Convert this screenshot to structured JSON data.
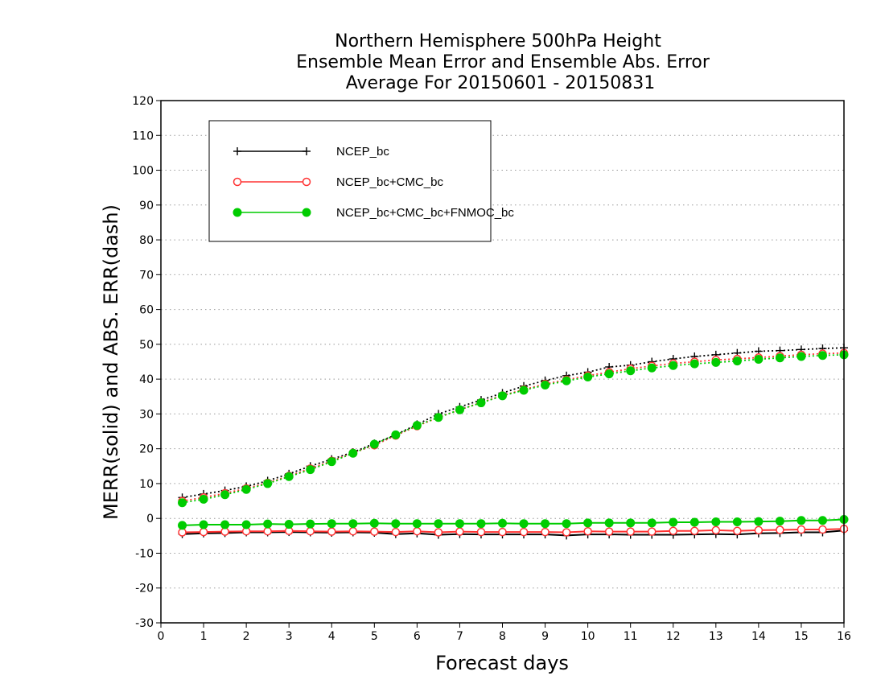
{
  "chart_data": {
    "type": "line",
    "title": [
      "Northern Hemisphere 500hPa Height",
      "Ensemble Mean Error and Ensemble Abs. Error",
      "Average For 20150601 - 20150831"
    ],
    "xlabel": "Forecast days",
    "ylabel": "MERR(solid) and ABS. ERR(dash)",
    "xlim": [
      0,
      16
    ],
    "ylim": [
      -30,
      120
    ],
    "xticks": [
      0,
      1,
      2,
      3,
      4,
      5,
      6,
      7,
      8,
      9,
      10,
      11,
      12,
      13,
      14,
      15,
      16
    ],
    "yticks": [
      -30,
      -20,
      -10,
      0,
      10,
      20,
      30,
      40,
      50,
      60,
      70,
      80,
      90,
      100,
      110,
      120
    ],
    "grid": true,
    "legend_position": "top-left",
    "x": [
      0.5,
      1,
      1.5,
      2,
      2.5,
      3,
      3.5,
      4,
      4.5,
      5,
      5.5,
      6,
      6.5,
      7,
      7.5,
      8,
      8.5,
      9,
      9.5,
      10,
      10.5,
      11,
      11.5,
      12,
      12.5,
      13,
      13.5,
      14,
      14.5,
      15,
      15.5,
      16
    ],
    "series": [
      {
        "name": "NCEP_bc",
        "color": "#000000",
        "marker": "plus",
        "merr": [
          -4.5,
          -4.3,
          -4.2,
          -4.0,
          -4.0,
          -3.9,
          -4.0,
          -4.1,
          -4.0,
          -4.1,
          -4.5,
          -4.3,
          -4.7,
          -4.5,
          -4.6,
          -4.6,
          -4.6,
          -4.6,
          -4.9,
          -4.6,
          -4.6,
          -4.7,
          -4.7,
          -4.7,
          -4.6,
          -4.5,
          -4.6,
          -4.3,
          -4.2,
          -4.0,
          -4.0,
          -3.5
        ],
        "abs_err": [
          6.0,
          7.0,
          8.0,
          9.2,
          10.8,
          12.8,
          15.0,
          17.0,
          19.0,
          21.5,
          24.0,
          27.0,
          30.0,
          32.0,
          34.0,
          36.0,
          38.0,
          39.6,
          41.0,
          42.0,
          43.5,
          44.0,
          45.0,
          45.8,
          46.5,
          47.0,
          47.5,
          48.0,
          48.2,
          48.5,
          48.8,
          49.0
        ]
      },
      {
        "name": "NCEP_bc+CMC_bc",
        "color": "#ff3333",
        "marker": "open-circle",
        "merr": [
          -4.0,
          -3.9,
          -3.8,
          -3.7,
          -3.7,
          -3.6,
          -3.7,
          -3.8,
          -3.7,
          -3.8,
          -3.9,
          -3.7,
          -4.0,
          -3.8,
          -3.9,
          -3.9,
          -3.9,
          -3.9,
          -4.0,
          -3.7,
          -3.8,
          -3.8,
          -3.8,
          -3.6,
          -3.6,
          -3.4,
          -3.6,
          -3.4,
          -3.3,
          -3.2,
          -3.2,
          -3.0
        ],
        "abs_err": [
          5.0,
          6.0,
          7.2,
          8.6,
          10.2,
          12.2,
          14.3,
          16.5,
          18.8,
          21.0,
          23.8,
          26.5,
          29.0,
          31.2,
          33.3,
          35.3,
          37.0,
          38.6,
          39.8,
          41.0,
          42.0,
          43.0,
          43.8,
          44.5,
          45.0,
          45.5,
          45.8,
          46.2,
          46.6,
          47.0,
          47.3,
          47.5
        ]
      },
      {
        "name": "NCEP_bc+CMC_bc+FNMOC_bc",
        "color": "#00cc00",
        "marker": "filled-circle",
        "merr": [
          -2.0,
          -1.8,
          -1.8,
          -1.8,
          -1.6,
          -1.7,
          -1.6,
          -1.5,
          -1.5,
          -1.4,
          -1.5,
          -1.5,
          -1.5,
          -1.5,
          -1.5,
          -1.4,
          -1.5,
          -1.5,
          -1.5,
          -1.3,
          -1.3,
          -1.3,
          -1.3,
          -1.1,
          -1.1,
          -1.0,
          -1.0,
          -0.9,
          -0.8,
          -0.6,
          -0.6,
          -0.3
        ],
        "abs_err": [
          4.5,
          5.5,
          6.8,
          8.3,
          10.0,
          12.0,
          14.0,
          16.3,
          18.7,
          21.3,
          24.0,
          26.7,
          29.0,
          31.2,
          33.2,
          35.2,
          36.8,
          38.3,
          39.5,
          40.6,
          41.5,
          42.4,
          43.2,
          43.9,
          44.4,
          44.8,
          45.2,
          45.7,
          46.1,
          46.5,
          46.8,
          47.0
        ]
      }
    ]
  }
}
